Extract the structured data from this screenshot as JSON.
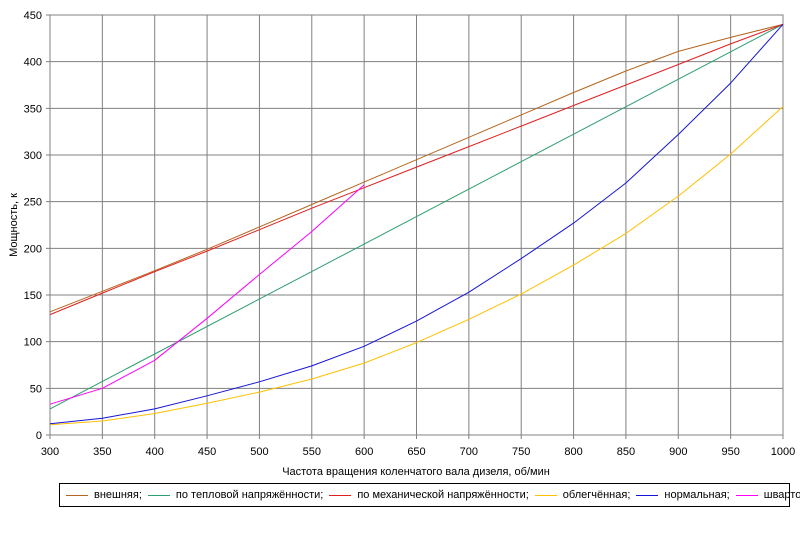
{
  "chart_data": {
    "type": "line",
    "title": "",
    "xlabel": "Частота вращения коленчатого вала дизеля, об/мин",
    "ylabel": "Мощность, к",
    "xlim": [
      300,
      1000
    ],
    "ylim": [
      0,
      450
    ],
    "x_ticks": [
      300,
      350,
      400,
      450,
      500,
      550,
      600,
      650,
      700,
      750,
      800,
      850,
      900,
      950,
      1000
    ],
    "y_ticks": [
      0,
      50,
      100,
      150,
      200,
      250,
      300,
      350,
      400,
      450
    ],
    "grid": true,
    "legend_position": "bottom",
    "series": [
      {
        "name": "внешняя;",
        "color": "#b5651d",
        "x": [
          300,
          350,
          400,
          450,
          500,
          550,
          600,
          650,
          700,
          750,
          800,
          850,
          900,
          950,
          1000
        ],
        "y": [
          132,
          154,
          176,
          199,
          223,
          247,
          271,
          295,
          319,
          343,
          367,
          390,
          411,
          426,
          440
        ]
      },
      {
        "name": "по тепловой напряжённости;",
        "color": "#2e9e6e",
        "x": [
          300,
          1000
        ],
        "y": [
          28,
          440
        ]
      },
      {
        "name": "по механической напряжённости;",
        "color": "#e02020",
        "x": [
          300,
          350,
          400,
          450,
          500,
          550,
          600,
          650,
          700,
          750,
          800,
          850,
          900,
          950,
          1000
        ],
        "y": [
          129,
          152,
          175,
          197,
          220,
          243,
          265,
          287,
          309,
          331,
          353,
          375,
          397,
          419,
          440
        ]
      },
      {
        "name": "облегчённая;",
        "color": "#ffc000",
        "x": [
          300,
          350,
          400,
          450,
          500,
          550,
          600,
          650,
          700,
          750,
          800,
          850,
          900,
          950,
          1000
        ],
        "y": [
          11,
          15,
          23,
          34,
          46,
          60,
          77,
          99,
          124,
          151,
          182,
          216,
          256,
          301,
          352
        ]
      },
      {
        "name": "нормальная;",
        "color": "#1414d8",
        "x": [
          300,
          350,
          400,
          450,
          500,
          550,
          600,
          650,
          700,
          750,
          800,
          850,
          900,
          950,
          1000
        ],
        "y": [
          12,
          18,
          28,
          42,
          57,
          74,
          95,
          122,
          153,
          189,
          227,
          270,
          322,
          377,
          440
        ]
      },
      {
        "name": "швартовная.",
        "color": "#ff00ff",
        "x": [
          300,
          350,
          400,
          450,
          500,
          550,
          600
        ],
        "y": [
          33,
          50,
          80,
          125,
          172,
          218,
          268
        ]
      }
    ]
  }
}
